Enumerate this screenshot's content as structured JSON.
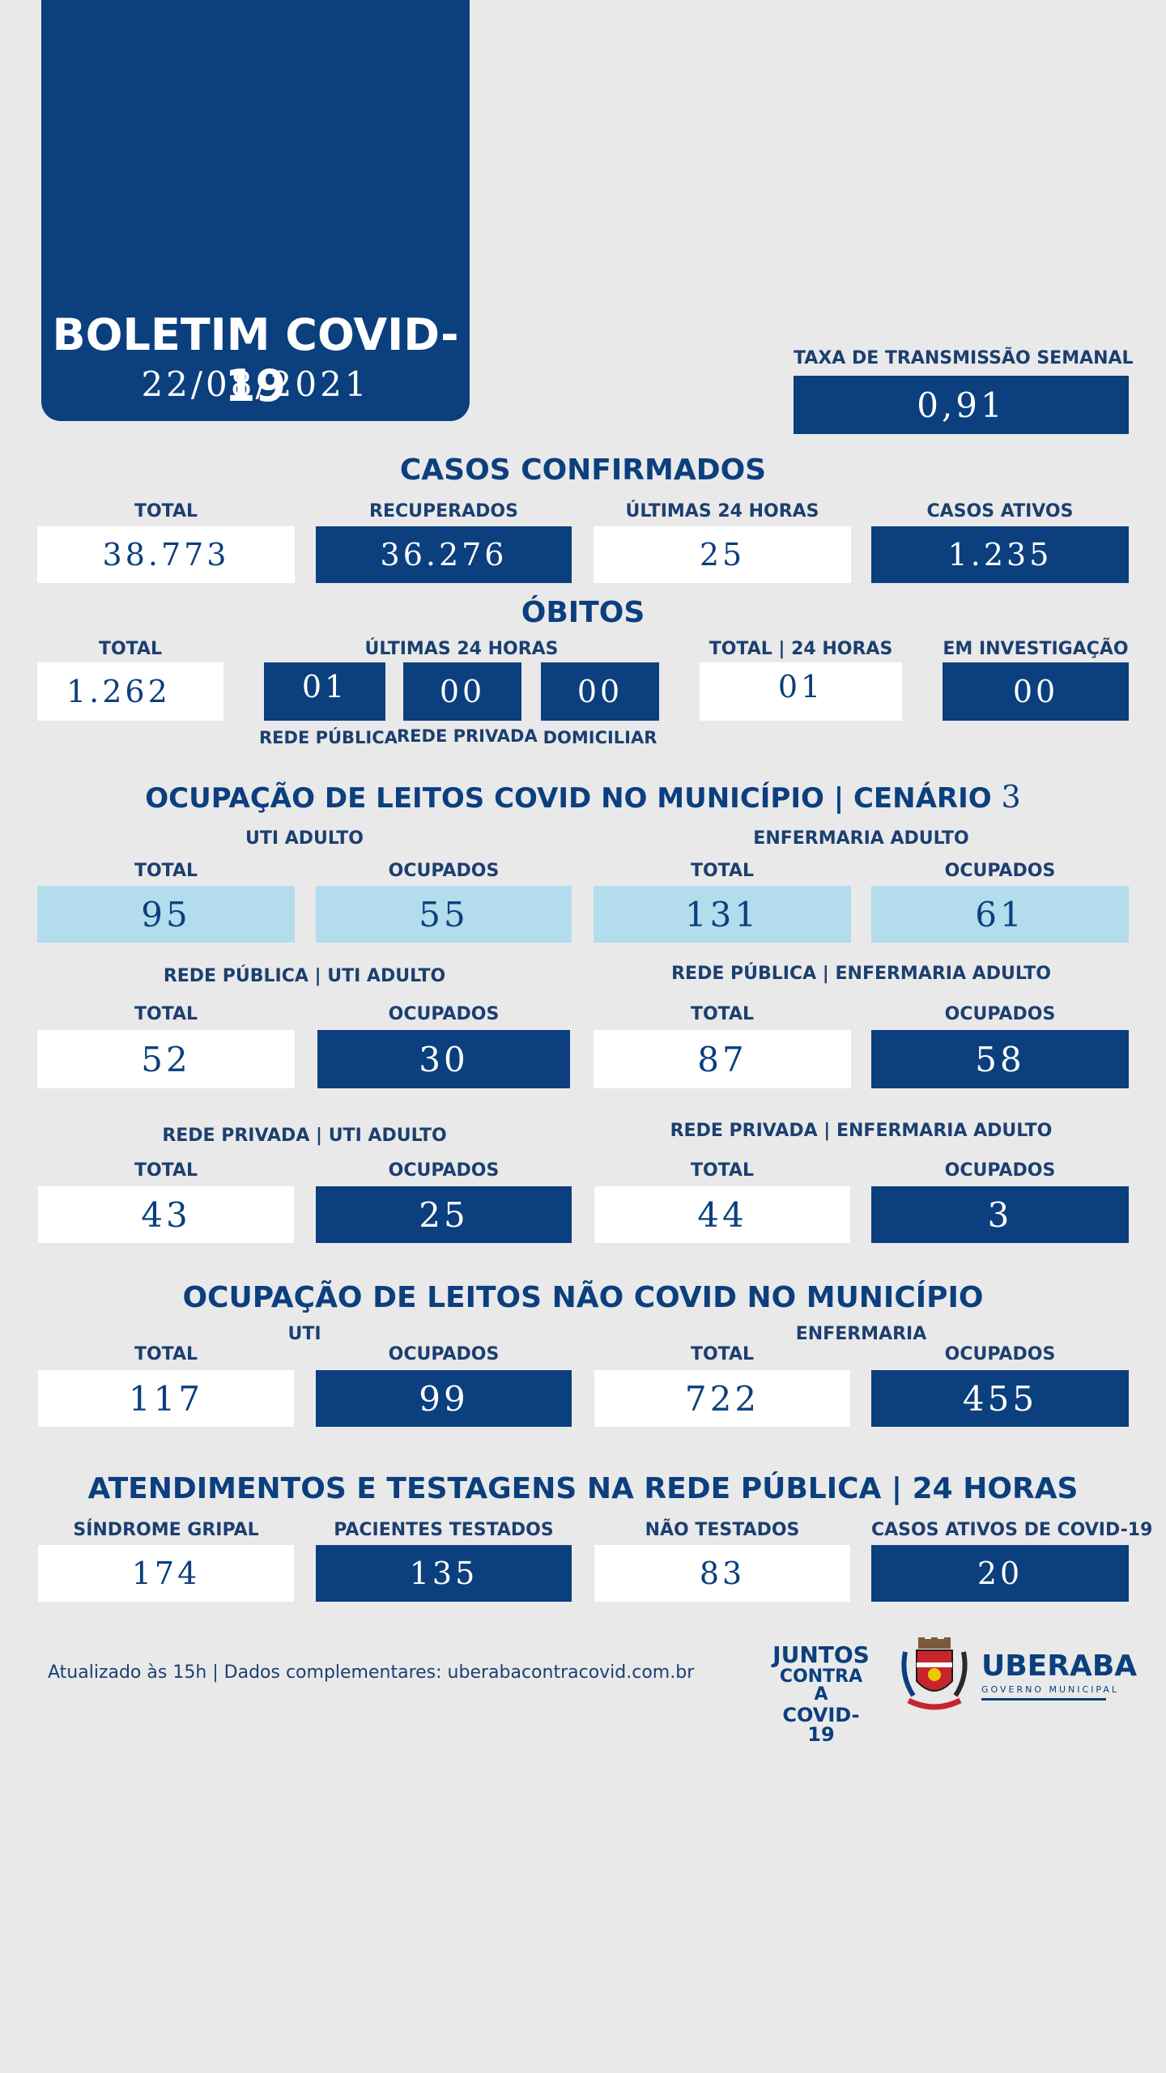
{
  "header": {
    "title": "BOLETIM COVID-19",
    "date": "22/08/2021"
  },
  "transmission": {
    "label": "TAXA DE TRANSMISSÃO SEMANAL",
    "value": "0,91"
  },
  "cases": {
    "title": "CASOS CONFIRMADOS",
    "total_label": "TOTAL",
    "total": "38.773",
    "recovered_label": "RECUPERADOS",
    "recovered": "36.276",
    "last24_label": "ÚLTIMAS 24 HORAS",
    "last24": "25",
    "active_label": "CASOS ATIVOS",
    "active": "1.235"
  },
  "deaths": {
    "title": "ÓBITOS",
    "total_label": "TOTAL",
    "total": "1.262",
    "last24_label": "ÚLTIMAS 24 HORAS",
    "public": "01",
    "public_label": "REDE PÚBLICA",
    "private": "00",
    "private_label": "REDE PRIVADA",
    "home": "00",
    "home_label": "DOMICILIAR",
    "total24_label": "TOTAL | 24 HORAS",
    "total24": "01",
    "investigation_label": "EM INVESTIGAÇÃO",
    "investigation": "00"
  },
  "covid_beds": {
    "title": "OCUPAÇÃO DE LEITOS COVID NO MUNICÍPIO | CENÁRIO",
    "scenario": "3",
    "total_label": "TOTAL",
    "occupied_label": "OCUPADOS",
    "uti_title": "UTI ADULTO",
    "uti_total": "95",
    "uti_occupied": "55",
    "ward_title": "ENFERMARIA ADULTO",
    "ward_total": "131",
    "ward_occupied": "61",
    "pub_uti_title": "REDE PÚBLICA | UTI ADULTO",
    "pub_uti_total": "52",
    "pub_uti_occupied": "30",
    "pub_ward_title": "REDE PÚBLICA | ENFERMARIA ADULTO",
    "pub_ward_total": "87",
    "pub_ward_occupied": "58",
    "priv_uti_title": "REDE PRIVADA | UTI ADULTO",
    "priv_uti_total": "43",
    "priv_uti_occupied": "25",
    "priv_ward_title": "REDE PRIVADA | ENFERMARIA ADULTO",
    "priv_ward_total": "44",
    "priv_ward_occupied": "3"
  },
  "noncovid_beds": {
    "title": "OCUPAÇÃO DE LEITOS NÃO COVID NO MUNICÍPIO",
    "uti_title": "UTI",
    "ward_title": "ENFERMARIA",
    "total_label": "TOTAL",
    "occupied_label": "OCUPADOS",
    "uti_total": "117",
    "uti_occupied": "99",
    "ward_total": "722",
    "ward_occupied": "455"
  },
  "tests": {
    "title": "ATENDIMENTOS E TESTAGENS NA REDE PÚBLICA | 24 HORAS",
    "flu_label": "SÍNDROME GRIPAL",
    "flu": "174",
    "tested_label": "PACIENTES TESTADOS",
    "tested": "135",
    "not_tested_label": "NÃO TESTADOS",
    "not_tested": "83",
    "active_label": "CASOS ATIVOS DE COVID-19",
    "active": "20"
  },
  "footer": {
    "updated": "Atualizado às 15h | Dados complementares: uberabacontracovid.com.br",
    "juntos_1": "JUNTOS",
    "juntos_2": "CONTRA A",
    "juntos_3": "COVID-19",
    "city": "UBERABA",
    "gov": "GOVERNO MUNICIPAL",
    "coat_icon": "coat-of-arms-icon"
  }
}
